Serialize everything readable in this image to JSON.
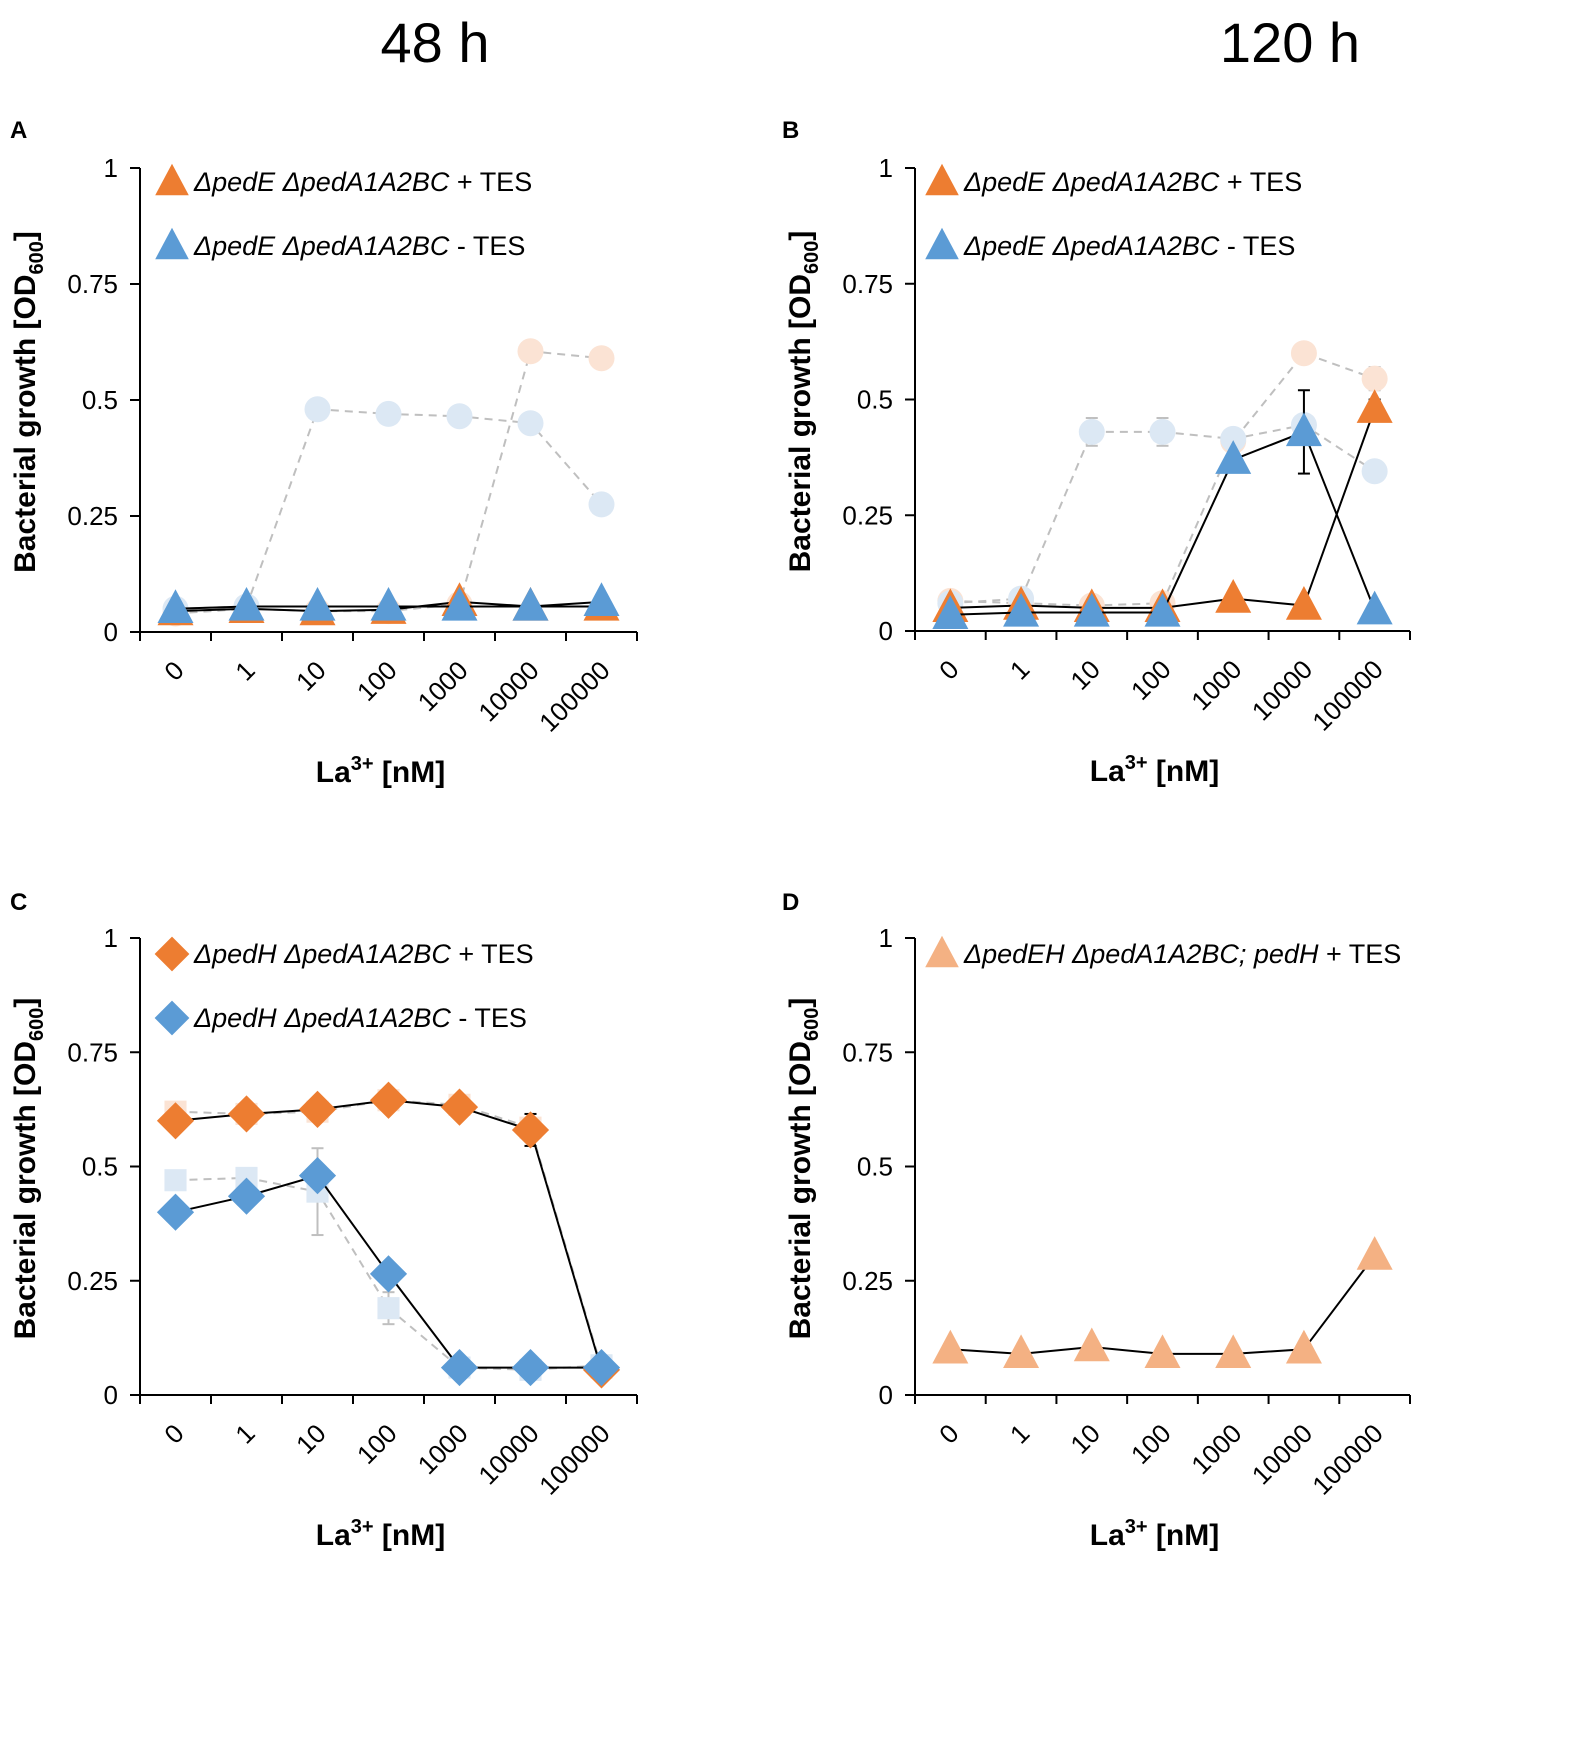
{
  "column_titles": [
    "48 h",
    "120 h"
  ],
  "colors": {
    "orange": "#ED7D31",
    "blue": "#5B9BD5",
    "light_orange": "#F4B183",
    "ref_orange": "#FBE3D4",
    "ref_blue": "#DCE8F4",
    "ref_line": "#BFBFBF",
    "line": "#000000"
  },
  "chart_data": [
    {
      "id": "A",
      "type": "line",
      "panel_label": "A",
      "column": "48 h",
      "categories": [
        "0",
        "1",
        "10",
        "100",
        "1000",
        "10000",
        "100000"
      ],
      "ylim": [
        0,
        1
      ],
      "yticks": [
        "0",
        "0.25",
        "0.5",
        "0.75",
        "1"
      ],
      "ylabel": "Bacterial growth [OD",
      "ylabel_sub": "600",
      "ylabel_close": "]",
      "xlabel": "La",
      "xlabel_sup": "3+",
      "xlabel_rest": " [nM]",
      "series": [
        {
          "name": "ΔpedE ΔpedA1A2BC + TES",
          "legend_parts": [
            [
              "ΔpedE ΔpedA1A2BC",
              true
            ],
            [
              " + TES",
              false
            ]
          ],
          "marker": "triangle",
          "color": "orange",
          "line": "solid",
          "values": [
            0.045,
            0.05,
            0.045,
            0.048,
            0.065,
            0.055,
            0.055
          ],
          "errors": [
            0,
            0,
            0,
            0,
            0,
            0,
            0
          ]
        },
        {
          "name": "ΔpedE ΔpedA1A2BC - TES",
          "legend_parts": [
            [
              "ΔpedE ΔpedA1A2BC",
              true
            ],
            [
              " - TES",
              false
            ]
          ],
          "marker": "triangle",
          "color": "blue",
          "line": "solid",
          "values": [
            0.05,
            0.055,
            0.055,
            0.055,
            0.055,
            0.055,
            0.065
          ],
          "errors": [
            0,
            0,
            0,
            0,
            0,
            0,
            0
          ]
        },
        {
          "name": "reference orange",
          "reference": true,
          "marker": "circle",
          "color": "ref_orange",
          "line": "dashed",
          "values": [
            0.04,
            0.05,
            0.045,
            0.045,
            0.06,
            0.605,
            0.59
          ],
          "errors": [
            0,
            0,
            0,
            0,
            0,
            0,
            0
          ]
        },
        {
          "name": "reference blue",
          "reference": true,
          "marker": "circle",
          "color": "ref_blue",
          "line": "dashed",
          "values": [
            0.05,
            0.055,
            0.48,
            0.47,
            0.465,
            0.45,
            0.275
          ],
          "errors": [
            0,
            0,
            0.015,
            0.012,
            0.01,
            0.01,
            0.01
          ]
        }
      ]
    },
    {
      "id": "B",
      "type": "line",
      "panel_label": "B",
      "column": "120 h",
      "categories": [
        "0",
        "1",
        "10",
        "100",
        "1000",
        "10000",
        "100000"
      ],
      "ylim": [
        0,
        1
      ],
      "yticks": [
        "0",
        "0.25",
        "0.5",
        "0.75",
        "1"
      ],
      "ylabel": "Bacterial growth [OD",
      "ylabel_sub": "600",
      "ylabel_close": "]",
      "xlabel": "La",
      "xlabel_sup": "3+",
      "xlabel_rest": " [nM]",
      "series": [
        {
          "name": "ΔpedE ΔpedA1A2BC + TES",
          "legend_parts": [
            [
              "ΔpedE ΔpedA1A2BC",
              true
            ],
            [
              " + TES",
              false
            ]
          ],
          "marker": "triangle",
          "color": "orange",
          "line": "solid",
          "values": [
            0.05,
            0.055,
            0.05,
            0.05,
            0.07,
            0.055,
            0.48
          ],
          "errors": [
            0,
            0,
            0,
            0,
            0,
            0,
            0.02
          ]
        },
        {
          "name": "ΔpedE ΔpedA1A2BC - TES",
          "legend_parts": [
            [
              "ΔpedE ΔpedA1A2BC",
              true
            ],
            [
              " - TES",
              false
            ]
          ],
          "marker": "triangle",
          "color": "blue",
          "line": "solid",
          "values": [
            0.035,
            0.04,
            0.04,
            0.04,
            0.37,
            0.43,
            0.045
          ],
          "errors": [
            0,
            0,
            0,
            0,
            0,
            0.09,
            0
          ]
        },
        {
          "name": "reference orange",
          "reference": true,
          "marker": "circle",
          "color": "ref_orange",
          "line": "dashed",
          "values": [
            0.065,
            0.06,
            0.055,
            0.06,
            0.41,
            0.6,
            0.545
          ],
          "errors": [
            0,
            0,
            0,
            0,
            0.01,
            0.01,
            0.025
          ]
        },
        {
          "name": "reference blue",
          "reference": true,
          "marker": "circle",
          "color": "ref_blue",
          "line": "dashed",
          "values": [
            0.06,
            0.07,
            0.43,
            0.43,
            0.415,
            0.445,
            0.345
          ],
          "errors": [
            0,
            0,
            0.03,
            0.03,
            0.015,
            0.015,
            0.015
          ]
        }
      ]
    },
    {
      "id": "C",
      "type": "line",
      "panel_label": "C",
      "column": "48 h",
      "categories": [
        "0",
        "1",
        "10",
        "100",
        "1000",
        "10000",
        "100000"
      ],
      "ylim": [
        0,
        1
      ],
      "yticks": [
        "0",
        "0.25",
        "0.5",
        "0.75",
        "1"
      ],
      "ylabel": "Bacterial growth [OD",
      "ylabel_sub": "600",
      "ylabel_close": "]",
      "xlabel": "La",
      "xlabel_sup": "3+",
      "xlabel_rest": " [nM]",
      "series": [
        {
          "name": "ΔpedH ΔpedA1A2BC + TES",
          "legend_parts": [
            [
              "ΔpedH ΔpedA1A2BC",
              true
            ],
            [
              " + TES",
              false
            ]
          ],
          "marker": "diamond",
          "color": "orange",
          "line": "solid",
          "values": [
            0.6,
            0.615,
            0.625,
            0.645,
            0.63,
            0.58,
            0.055
          ],
          "errors": [
            0,
            0,
            0,
            0,
            0,
            0.035,
            0
          ]
        },
        {
          "name": "ΔpedH ΔpedA1A2BC - TES",
          "legend_parts": [
            [
              "ΔpedH ΔpedA1A2BC",
              true
            ],
            [
              " - TES",
              false
            ]
          ],
          "marker": "diamond",
          "color": "blue",
          "line": "solid",
          "values": [
            0.4,
            0.435,
            0.48,
            0.265,
            0.06,
            0.06,
            0.06
          ],
          "errors": [
            0,
            0,
            0,
            0,
            0,
            0,
            0
          ]
        },
        {
          "name": "reference orange",
          "reference": true,
          "marker": "square",
          "color": "ref_orange",
          "line": "dashed",
          "values": [
            0.62,
            0.615,
            0.62,
            0.645,
            0.635,
            0.585,
            0.06
          ],
          "errors": [
            0,
            0,
            0,
            0,
            0,
            0,
            0
          ]
        },
        {
          "name": "reference blue",
          "reference": true,
          "marker": "square",
          "color": "ref_blue",
          "line": "dashed",
          "values": [
            0.47,
            0.475,
            0.445,
            0.19,
            0.06,
            0.055,
            0.065
          ],
          "errors": [
            0.02,
            0.02,
            0.095,
            0.035,
            0,
            0,
            0
          ]
        }
      ]
    },
    {
      "id": "D",
      "type": "line",
      "panel_label": "D",
      "column": "120 h",
      "categories": [
        "0",
        "1",
        "10",
        "100",
        "1000",
        "10000",
        "100000"
      ],
      "ylim": [
        0,
        1
      ],
      "yticks": [
        "0",
        "0.25",
        "0.5",
        "0.75",
        "1"
      ],
      "ylabel": "Bacterial growth [OD",
      "ylabel_sub": "600",
      "ylabel_close": "]",
      "xlabel": "La",
      "xlabel_sup": "3+",
      "xlabel_rest": " [nM]",
      "series": [
        {
          "name": "ΔpedEH ΔpedA1A2BC; pedH + TES",
          "legend_parts": [
            [
              "ΔpedEH ΔpedA1A2BC; pedH",
              true
            ],
            [
              " + TES",
              false
            ]
          ],
          "marker": "triangle",
          "color": "light_orange",
          "line": "solid",
          "values": [
            0.1,
            0.09,
            0.105,
            0.09,
            0.09,
            0.1,
            0.305
          ],
          "errors": [
            0,
            0,
            0,
            0,
            0,
            0,
            0
          ]
        }
      ]
    }
  ]
}
